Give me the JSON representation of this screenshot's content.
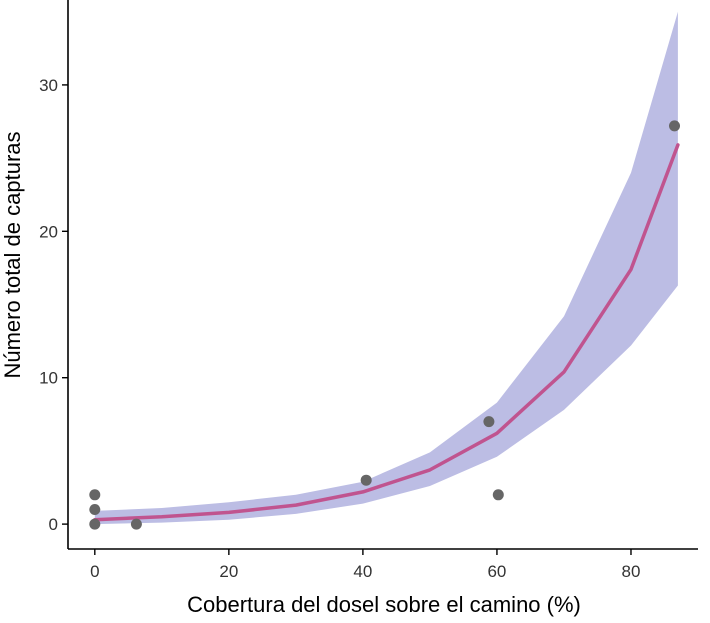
{
  "chart_data": {
    "type": "scatter",
    "title": "",
    "xlabel": "Cobertura del dosel sobre el camino (%)",
    "ylabel": "Número total de capturas",
    "xlim": [
      -4,
      90
    ],
    "ylim": [
      -1.7,
      35.8
    ],
    "x_ticks": [
      0,
      20,
      40,
      60,
      80
    ],
    "y_ticks": [
      0,
      10,
      20,
      30
    ],
    "grid": false,
    "legend": "none",
    "colors": {
      "points": "#666666",
      "fit_line": "#c0548f",
      "confidence_band": "#bcbde4",
      "axis": "#000000"
    },
    "points": {
      "x": [
        0,
        0,
        0,
        6.2,
        40.5,
        58.8,
        60.2,
        86.5
      ],
      "y": [
        0,
        1,
        2,
        0,
        3,
        7,
        2,
        27.2
      ]
    },
    "fit": {
      "x": [
        0,
        10,
        20,
        30,
        40,
        50,
        60,
        70,
        80,
        87
      ],
      "y": [
        0.3,
        0.5,
        0.8,
        1.3,
        2.2,
        3.7,
        6.2,
        10.4,
        17.4,
        25.9
      ]
    },
    "band": {
      "x": [
        0,
        10,
        20,
        30,
        40,
        50,
        60,
        70,
        80,
        87
      ],
      "lower": [
        0.0,
        0.1,
        0.3,
        0.7,
        1.4,
        2.6,
        4.6,
        7.8,
        12.2,
        16.3
      ],
      "upper": [
        0.9,
        1.1,
        1.5,
        2.0,
        2.9,
        4.9,
        8.3,
        14.2,
        24.0,
        35.0
      ]
    }
  }
}
